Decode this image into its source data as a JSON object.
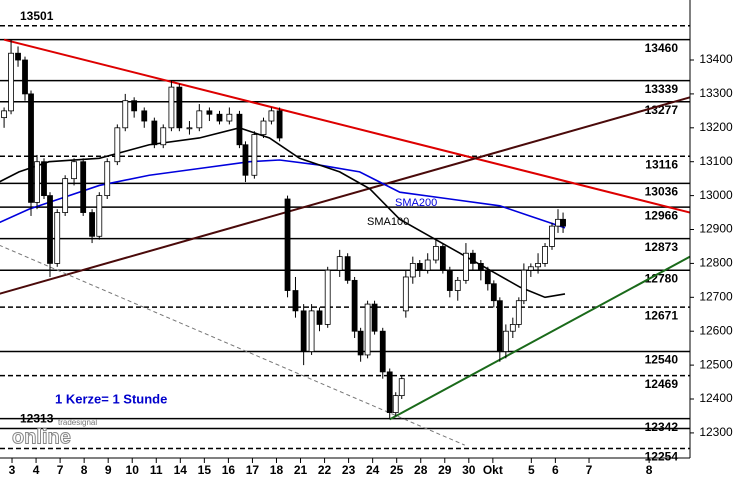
{
  "chart_data": {
    "type": "candlestick",
    "xlim": [
      -0.5,
      28.2
    ],
    "ylim": [
      12226,
      13577
    ],
    "xticks": [
      {
        "value": 0,
        "label": "3"
      },
      {
        "value": 1,
        "label": "4"
      },
      {
        "value": 2,
        "label": "7"
      },
      {
        "value": 3,
        "label": "8"
      },
      {
        "value": 4,
        "label": "9"
      },
      {
        "value": 5,
        "label": "10"
      },
      {
        "value": 6,
        "label": "11"
      },
      {
        "value": 7,
        "label": "14"
      },
      {
        "value": 8,
        "label": "15"
      },
      {
        "value": 9,
        "label": "16"
      },
      {
        "value": 10,
        "label": "17"
      },
      {
        "value": 11,
        "label": "18"
      },
      {
        "value": 12,
        "label": "21"
      },
      {
        "value": 13,
        "label": "22"
      },
      {
        "value": 14,
        "label": "23"
      },
      {
        "value": 15,
        "label": "24"
      },
      {
        "value": 16,
        "label": "25"
      },
      {
        "value": 17,
        "label": "28"
      },
      {
        "value": 18,
        "label": "29"
      },
      {
        "value": 19,
        "label": "30"
      },
      {
        "value": 20,
        "label": "Okt"
      },
      {
        "value": 21.6,
        "label": "5"
      },
      {
        "value": 22.6,
        "label": "6"
      },
      {
        "value": 24,
        "label": "7"
      },
      {
        "value": 26.5,
        "label": "8"
      }
    ],
    "yticks": [
      13400,
      13300,
      13200,
      13100,
      13000,
      12900,
      12800,
      12700,
      12600,
      12500,
      12400,
      12300
    ],
    "candles": {
      "x": [
        -0.33,
        -0.04,
        0.25,
        0.54,
        0.79,
        1.04,
        1.33,
        1.58,
        1.88,
        2.21,
        2.58,
        2.96,
        3.33,
        3.63,
        3.96,
        4.38,
        4.71,
        5.08,
        5.5,
        5.92,
        6.29,
        6.63,
        6.96,
        7.38,
        7.79,
        8.21,
        8.63,
        9.04,
        9.46,
        9.71,
        10.08,
        10.46,
        10.79,
        11.13,
        11.46,
        11.79,
        12.13,
        12.46,
        12.79,
        13.13,
        13.63,
        13.96,
        14.25,
        14.5,
        14.79,
        15.08,
        15.42,
        15.71,
        15.96,
        16.21,
        16.38,
        16.67,
        16.96,
        17.29,
        17.63,
        17.92,
        18.21,
        18.54,
        18.88,
        19.17,
        19.5,
        19.79,
        20.04,
        20.29,
        20.54,
        20.83,
        21.08,
        21.29,
        21.58,
        21.88,
        22.17,
        22.46,
        22.71,
        22.92
      ],
      "open": [
        13230,
        13250,
        13420,
        13400,
        13300,
        12980,
        13100,
        13000,
        12800,
        12950,
        13050,
        13100,
        12950,
        12880,
        13000,
        13100,
        13200,
        13280,
        13250,
        13220,
        13150,
        13200,
        13320,
        13200,
        13200,
        13250,
        13240,
        13220,
        13240,
        13150,
        13060,
        13180,
        13220,
        13250,
        12990,
        12720,
        12660,
        12540,
        12660,
        12620,
        12780,
        12820,
        12750,
        12600,
        12530,
        12680,
        12600,
        12480,
        12360,
        12410,
        12660,
        12760,
        12800,
        12780,
        12810,
        12850,
        12780,
        12720,
        12750,
        12830,
        12800,
        12780,
        12740,
        12690,
        12540,
        12600,
        12620,
        12690,
        12780,
        12790,
        12800,
        12850,
        12910,
        12930
      ],
      "high": [
        13260,
        13460,
        13440,
        13410,
        13310,
        13120,
        13110,
        13010,
        12960,
        13060,
        13110,
        13110,
        12960,
        13010,
        13110,
        13210,
        13300,
        13290,
        13260,
        13230,
        13210,
        13340,
        13330,
        13220,
        13270,
        13260,
        13250,
        13260,
        13250,
        13160,
        13190,
        13230,
        13260,
        13260,
        13000,
        12760,
        12680,
        12680,
        12670,
        12790,
        12840,
        12830,
        12760,
        12610,
        12690,
        12690,
        12610,
        12490,
        12420,
        12470,
        12780,
        12820,
        12810,
        12830,
        12870,
        12860,
        12790,
        12760,
        12860,
        12840,
        12810,
        12790,
        12750,
        12700,
        12620,
        12640,
        12700,
        12800,
        12800,
        12830,
        12860,
        12920,
        12960,
        12950
      ],
      "low": [
        13200,
        13240,
        13380,
        13280,
        12940,
        12960,
        12990,
        12760,
        12790,
        12940,
        13030,
        12940,
        12860,
        12870,
        12990,
        13090,
        13190,
        13230,
        13200,
        13140,
        13140,
        13190,
        13190,
        13180,
        13190,
        13220,
        13210,
        13210,
        13140,
        13040,
        13050,
        13170,
        13210,
        13160,
        12700,
        12640,
        12500,
        12530,
        12600,
        12610,
        12760,
        12740,
        12580,
        12510,
        12520,
        12590,
        12460,
        12340,
        12350,
        12400,
        12640,
        12740,
        12760,
        12770,
        12800,
        12770,
        12700,
        12690,
        12740,
        12780,
        12750,
        12720,
        12670,
        12510,
        12520,
        12580,
        12610,
        12680,
        12760,
        12770,
        12790,
        12840,
        12890,
        12890
      ],
      "close": [
        13250,
        13420,
        13400,
        13300,
        12980,
        13100,
        13000,
        12800,
        12950,
        13050,
        13100,
        12950,
        12880,
        13000,
        13100,
        13200,
        13280,
        13250,
        13220,
        13150,
        13200,
        13320,
        13200,
        13200,
        13250,
        13240,
        13220,
        13240,
        13150,
        13060,
        13180,
        13220,
        13250,
        13170,
        12720,
        12660,
        12540,
        12660,
        12620,
        12780,
        12820,
        12750,
        12600,
        12530,
        12680,
        12600,
        12480,
        12360,
        12410,
        12460,
        12760,
        12800,
        12780,
        12810,
        12850,
        12780,
        12720,
        12750,
        12830,
        12800,
        12780,
        12740,
        12690,
        12540,
        12600,
        12620,
        12690,
        12780,
        12790,
        12800,
        12850,
        12910,
        12930,
        12910
      ]
    },
    "series": [
      {
        "name": "SMA200",
        "color": "#0000dd",
        "x": [
          -0.54,
          0.71,
          1.96,
          3.63,
          5.71,
          7.79,
          9.88,
          11.13,
          12.79,
          14.46,
          16.13,
          18.21,
          20.29,
          21.54,
          22.79,
          23
        ],
        "values": [
          12920,
          12960,
          12990,
          13030,
          13060,
          13080,
          13100,
          13105,
          13090,
          13070,
          13010,
          12990,
          12970,
          12940,
          12910,
          12905
        ]
      },
      {
        "name": "SMA100",
        "color": "#000000",
        "x": [
          -0.54,
          0.29,
          1.54,
          3.63,
          5.71,
          7.79,
          9.46,
          10.71,
          11.96,
          13.63,
          14.88,
          16.13,
          17.38,
          18.63,
          19.88,
          21.13,
          22.17,
          23
        ],
        "values": [
          13040,
          13070,
          13100,
          13110,
          13150,
          13170,
          13200,
          13170,
          13110,
          13070,
          13020,
          12930,
          12880,
          12830,
          12780,
          12730,
          12700,
          12710
        ]
      }
    ],
    "trendlines": [
      {
        "color": "#dd0000",
        "x": [
          -0.33,
          28.2
        ],
        "values": [
          13460,
          12950
        ]
      },
      {
        "color": "#4a0a0a",
        "x": [
          -0.54,
          28.2
        ],
        "values": [
          12710,
          13290
        ]
      },
      {
        "color": "#1a6a1a",
        "x": [
          15.71,
          28.2
        ],
        "values": [
          12340,
          12820
        ]
      },
      {
        "color": "#777777",
        "dashed": true,
        "x": [
          -0.54,
          18.83
        ],
        "values": [
          12854,
          12264
        ]
      }
    ],
    "levels": [
      {
        "value": 13501,
        "dashed": true,
        "side": "left"
      },
      {
        "value": 13460,
        "dashed": false,
        "side": "right"
      },
      {
        "value": 13339,
        "dashed": false,
        "side": "right"
      },
      {
        "value": 13277,
        "dashed": false,
        "side": "right"
      },
      {
        "value": 13116,
        "dashed": true,
        "side": "right"
      },
      {
        "value": 13036,
        "dashed": false,
        "side": "right"
      },
      {
        "value": 12966,
        "dashed": false,
        "side": "right"
      },
      {
        "value": 12873,
        "dashed": false,
        "side": "right"
      },
      {
        "value": 12780,
        "dashed": false,
        "side": "right"
      },
      {
        "value": 12671,
        "dashed": true,
        "side": "right"
      },
      {
        "value": 12540,
        "dashed": false,
        "side": "right"
      },
      {
        "value": 12469,
        "dashed": true,
        "side": "right"
      },
      {
        "value": 12342,
        "dashed": false,
        "side": "right"
      },
      {
        "value": 12313,
        "dashed": false,
        "side": "left"
      },
      {
        "value": 12254,
        "dashed": true,
        "side": "right"
      }
    ],
    "annotation": "1 Kerze= 1 Stunde",
    "logo": {
      "small": "tradesignal",
      "big": "online"
    }
  }
}
